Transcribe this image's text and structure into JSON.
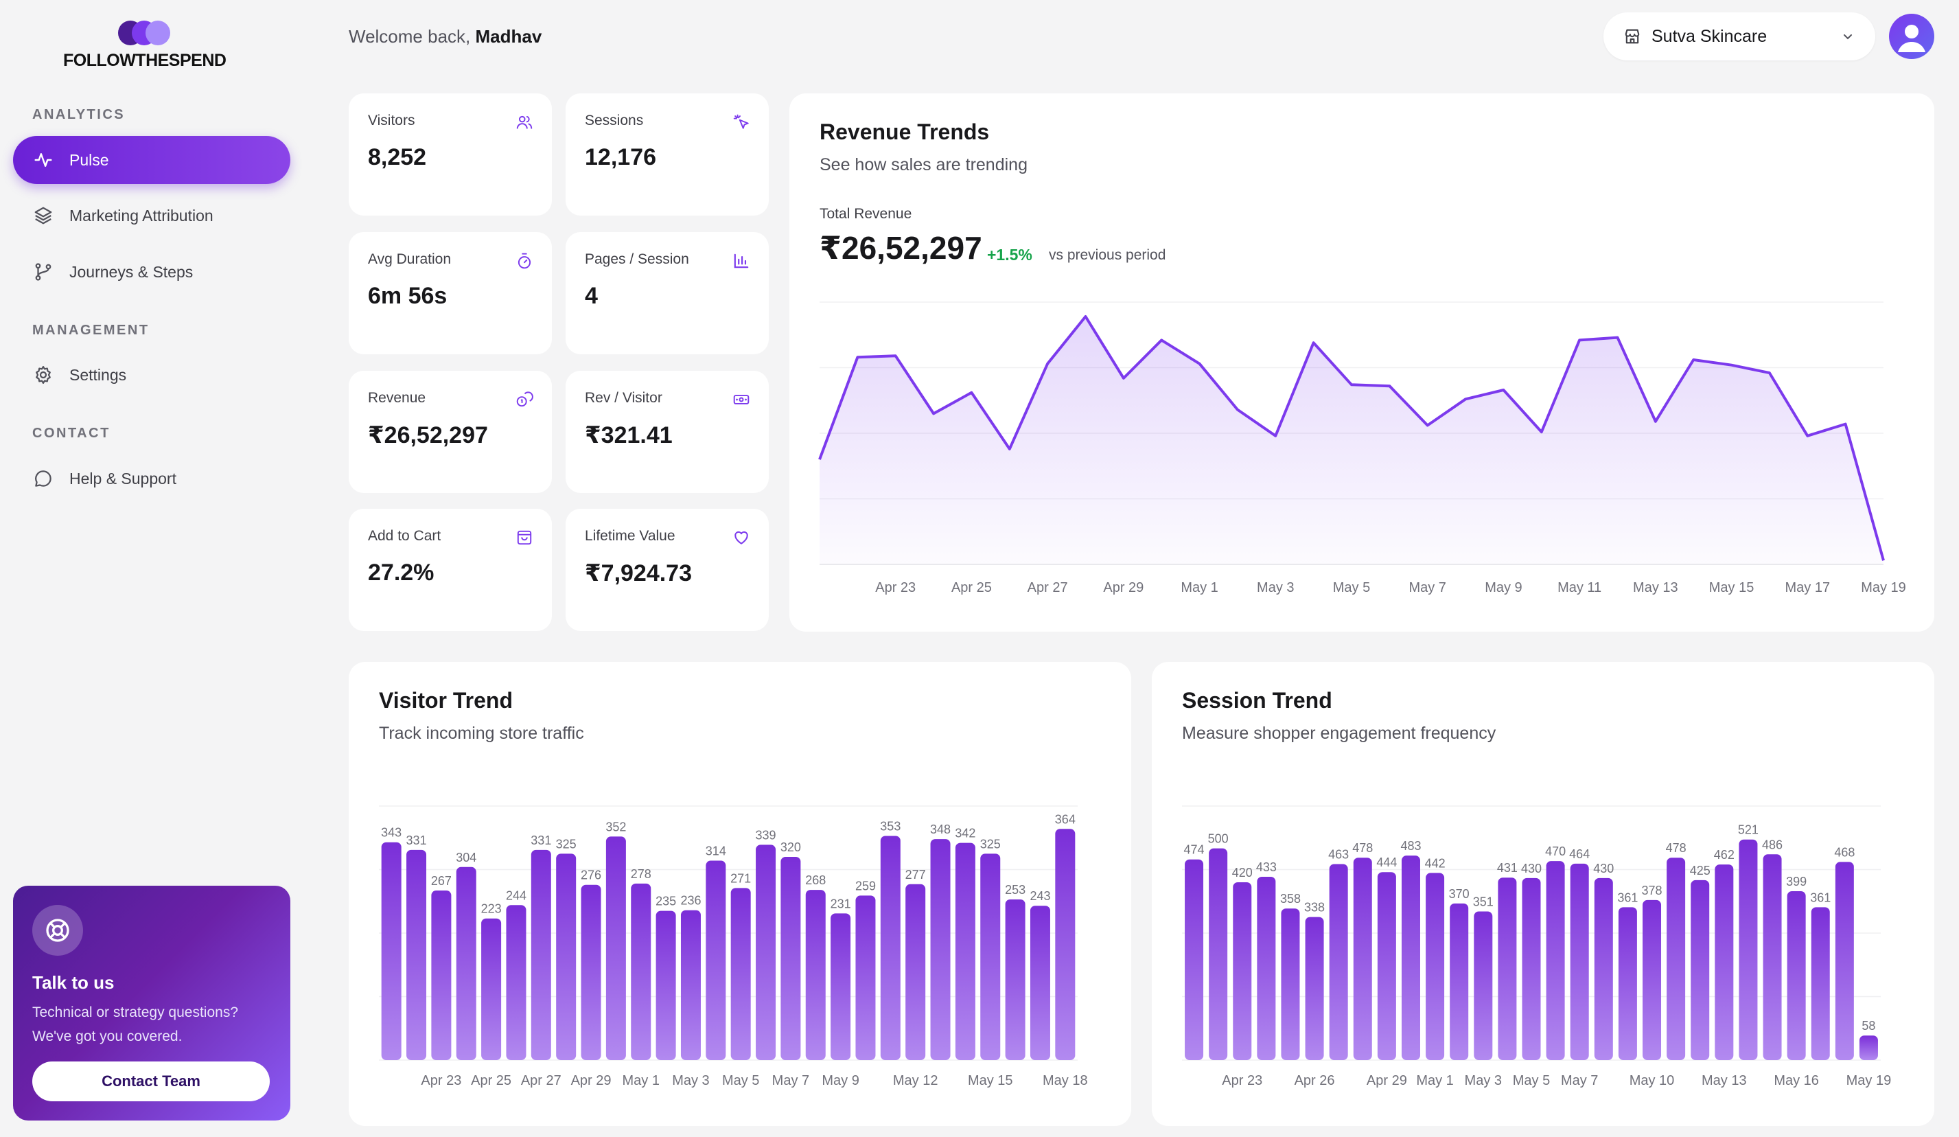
{
  "brand": {
    "name": "FOLLOWTHESPEND",
    "dot_colors": [
      "#4c1d95",
      "#7c3aed",
      "#a78bfa"
    ]
  },
  "sidebar": {
    "sections": [
      {
        "title": "ANALYTICS",
        "items": [
          {
            "label": "Pulse",
            "icon": "pulse-icon",
            "active": true
          },
          {
            "label": "Marketing Attribution",
            "icon": "layers-icon",
            "active": false
          },
          {
            "label": "Journeys & Steps",
            "icon": "branch-icon",
            "active": false
          }
        ]
      },
      {
        "title": "MANAGEMENT",
        "items": [
          {
            "label": "Settings",
            "icon": "gear-icon",
            "active": false
          }
        ]
      },
      {
        "title": "CONTACT",
        "items": [
          {
            "label": "Help & Support",
            "icon": "chat-icon",
            "active": false
          }
        ]
      }
    ],
    "talk_card": {
      "title": "Talk to us",
      "description": "Technical or strategy questions? We've got you covered.",
      "button": "Contact Team"
    }
  },
  "header": {
    "welcome_prefix": "Welcome back, ",
    "user_name": "Madhav",
    "store": "Sutva Skincare"
  },
  "metrics": [
    {
      "label": "Visitors",
      "value": "8,252",
      "icon": "users-icon"
    },
    {
      "label": "Sessions",
      "value": "12,176",
      "icon": "pointer-icon"
    },
    {
      "label": "Avg Duration",
      "value": "6m 56s",
      "icon": "timer-icon"
    },
    {
      "label": "Pages / Session",
      "value": "4",
      "icon": "bar-chart-icon"
    },
    {
      "label": "Revenue",
      "value": "₹26,52,297",
      "icon": "coins-icon"
    },
    {
      "label": "Rev / Visitor",
      "value": "₹321.41",
      "icon": "banknote-icon"
    },
    {
      "label": "Add to Cart",
      "value": "27.2%",
      "icon": "shopping-bag-icon"
    },
    {
      "label": "Lifetime Value",
      "value": "₹7,924.73",
      "icon": "heart-icon"
    }
  ],
  "revenue_panel": {
    "title": "Revenue Trends",
    "subtitle": "See how sales are trending",
    "total_label": "Total Revenue",
    "total_value": "₹26,52,297",
    "change": "+1.5%",
    "change_suffix": "vs previous period"
  },
  "visitor_panel": {
    "title": "Visitor Trend",
    "subtitle": "Track incoming store traffic"
  },
  "session_panel": {
    "title": "Session Trend",
    "subtitle": "Measure shopper engagement frequency"
  },
  "colors": {
    "accent": "#7c3aed",
    "positive": "#16a34a",
    "bar_top": "#7a2ed8",
    "bar_bottom": "#b28af0"
  },
  "chart_data": [
    {
      "type": "area",
      "title": "Revenue Trends",
      "x": [
        "Apr 21",
        "Apr 22",
        "Apr 23",
        "Apr 24",
        "Apr 25",
        "Apr 26",
        "Apr 27",
        "Apr 28",
        "Apr 29",
        "Apr 30",
        "May 1",
        "May 2",
        "May 3",
        "May 4",
        "May 5",
        "May 6",
        "May 7",
        "May 8",
        "May 9",
        "May 10",
        "May 11",
        "May 12",
        "May 13",
        "May 14",
        "May 15",
        "May 16",
        "May 17",
        "May 18",
        "May 19"
      ],
      "y": [
        80,
        158,
        159,
        115,
        131,
        88,
        153,
        189,
        142,
        171,
        153,
        118,
        98,
        169,
        137,
        136,
        106,
        126,
        133,
        101,
        171,
        173,
        109,
        156,
        152,
        146,
        98,
        107,
        3
      ],
      "tick_labels": [
        "Apr 23",
        "Apr 25",
        "Apr 27",
        "Apr 29",
        "May 1",
        "May 3",
        "May 5",
        "May 7",
        "May 9",
        "May 11",
        "May 13",
        "May 15",
        "May 17",
        "May 19"
      ],
      "ylim": [
        0,
        200
      ],
      "grid": true,
      "legend": "none"
    },
    {
      "type": "bar",
      "title": "Visitor Trend",
      "categories": [
        "Apr 21",
        "Apr 22",
        "Apr 23",
        "Apr 24",
        "Apr 25",
        "Apr 26",
        "Apr 27",
        "Apr 28",
        "Apr 29",
        "Apr 30",
        "May 1",
        "May 2",
        "May 3",
        "May 4",
        "May 5",
        "May 6",
        "May 7",
        "May 8",
        "May 9",
        "May 10",
        "May 11",
        "May 12",
        "May 13",
        "May 14",
        "May 15",
        "May 16",
        "May 17",
        "May 18"
      ],
      "values": [
        343,
        331,
        267,
        304,
        223,
        244,
        331,
        325,
        276,
        352,
        278,
        235,
        236,
        314,
        271,
        339,
        320,
        268,
        231,
        259,
        353,
        277,
        348,
        342,
        325,
        253,
        243,
        364
      ],
      "tick_labels": [
        {
          "index": 2,
          "label": "Apr 23"
        },
        {
          "index": 4,
          "label": "Apr 25"
        },
        {
          "index": 6,
          "label": "Apr 27"
        },
        {
          "index": 8,
          "label": "Apr 29"
        },
        {
          "index": 10,
          "label": "May 1"
        },
        {
          "index": 12,
          "label": "May 3"
        },
        {
          "index": 14,
          "label": "May 5"
        },
        {
          "index": 16,
          "label": "May 7"
        },
        {
          "index": 18,
          "label": "May 9"
        },
        {
          "index": 21,
          "label": "May 12"
        },
        {
          "index": 24,
          "label": "May 15"
        },
        {
          "index": 27,
          "label": "May 18"
        }
      ],
      "ylim": [
        0,
        400
      ],
      "grid": true,
      "legend": "none"
    },
    {
      "type": "bar",
      "title": "Session Trend",
      "categories": [
        "Apr 21",
        "Apr 22",
        "Apr 23",
        "Apr 24",
        "Apr 25",
        "Apr 26",
        "Apr 27",
        "Apr 28",
        "Apr 29",
        "Apr 30",
        "May 1",
        "May 2",
        "May 3",
        "May 4",
        "May 5",
        "May 6",
        "May 7",
        "May 8",
        "May 9",
        "May 10",
        "May 11",
        "May 12",
        "May 13",
        "May 14",
        "May 15",
        "May 16",
        "May 17",
        "May 18",
        "May 19"
      ],
      "values": [
        474,
        500,
        420,
        433,
        358,
        338,
        463,
        478,
        444,
        483,
        442,
        370,
        351,
        431,
        430,
        470,
        464,
        430,
        361,
        378,
        478,
        425,
        462,
        521,
        486,
        399,
        361,
        468,
        58
      ],
      "tick_labels": [
        {
          "index": 2,
          "label": "Apr 23"
        },
        {
          "index": 5,
          "label": "Apr 26"
        },
        {
          "index": 8,
          "label": "Apr 29"
        },
        {
          "index": 10,
          "label": "May 1"
        },
        {
          "index": 12,
          "label": "May 3"
        },
        {
          "index": 14,
          "label": "May 5"
        },
        {
          "index": 16,
          "label": "May 7"
        },
        {
          "index": 19,
          "label": "May 10"
        },
        {
          "index": 22,
          "label": "May 13"
        },
        {
          "index": 25,
          "label": "May 16"
        },
        {
          "index": 28,
          "label": "May 19"
        }
      ],
      "ylim": [
        0,
        600
      ],
      "grid": true,
      "legend": "none"
    }
  ]
}
